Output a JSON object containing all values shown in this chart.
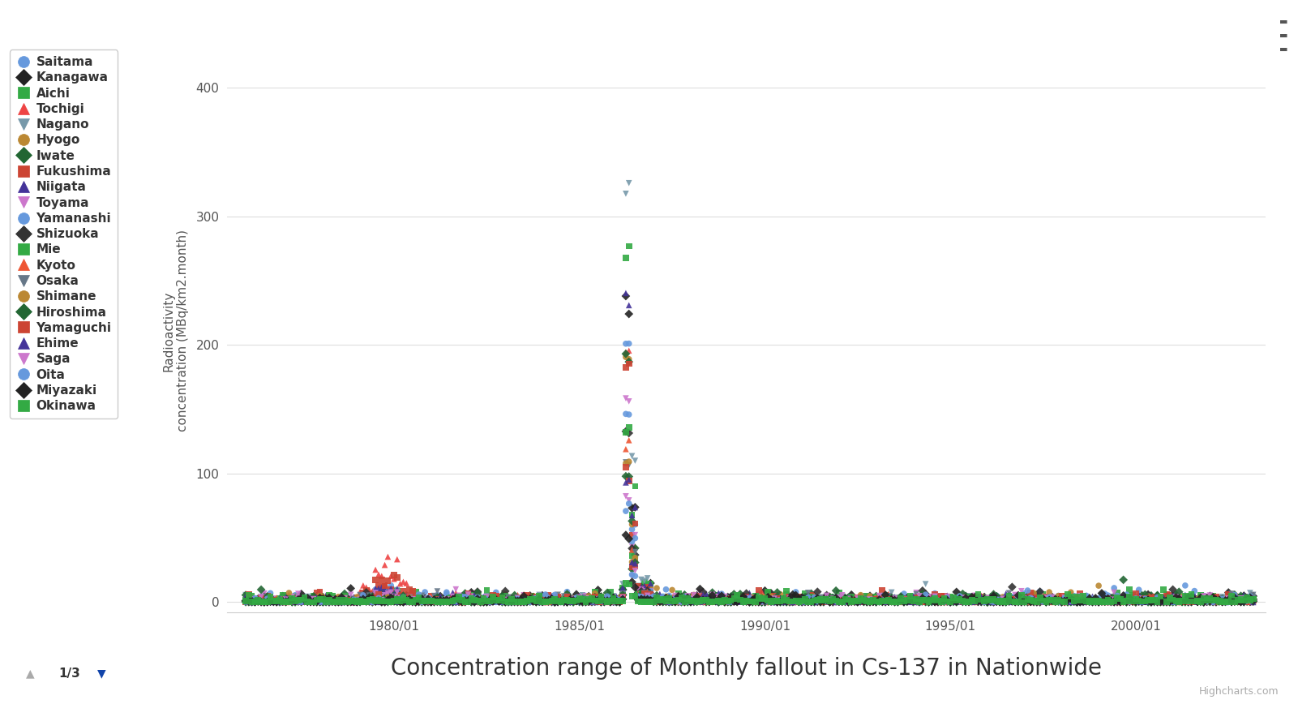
{
  "title": "Concentration range of Monthly fallout in Cs-137 in Nationwide",
  "ylabel": "Radioactivity\nconcentration (MBq/km2.month)",
  "background_color": "#ffffff",
  "plot_bg_color": "#ffffff",
  "grid_color": "#dddddd",
  "xlim_start": 1975.5,
  "xlim_end": 2003.5,
  "ylim": [
    -8,
    430
  ],
  "yticks": [
    0,
    100,
    200,
    300,
    400
  ],
  "series": [
    {
      "name": "Saitama",
      "color": "#6699dd",
      "marker": "o",
      "spike": 197,
      "pre": 12
    },
    {
      "name": "Kanagawa",
      "color": "#222222",
      "marker": "D",
      "spike": 228,
      "pre": 5
    },
    {
      "name": "Aichi",
      "color": "#33aa44",
      "marker": "s",
      "spike": 270,
      "pre": 8
    },
    {
      "name": "Tochigi",
      "color": "#ee4444",
      "marker": "^",
      "spike": 190,
      "pre": 35
    },
    {
      "name": "Nagano",
      "color": "#7799aa",
      "marker": "v",
      "spike": 325,
      "pre": 10
    },
    {
      "name": "Hyogo",
      "color": "#bb8833",
      "marker": "o",
      "spike": 190,
      "pre": 5
    },
    {
      "name": "Iwate",
      "color": "#226633",
      "marker": "D",
      "spike": 185,
      "pre": 7
    },
    {
      "name": "Fukushima",
      "color": "#cc4433",
      "marker": "s",
      "spike": 195,
      "pre": 20
    },
    {
      "name": "Niigata",
      "color": "#443399",
      "marker": "^",
      "spike": 243,
      "pre": 12
    },
    {
      "name": "Toyama",
      "color": "#cc77cc",
      "marker": "v",
      "spike": 160,
      "pre": 8
    },
    {
      "name": "Yamanashi",
      "color": "#6699dd",
      "marker": "o",
      "spike": 148,
      "pre": 5
    },
    {
      "name": "Shizuoka",
      "color": "#333333",
      "marker": "D",
      "spike": 140,
      "pre": 5
    },
    {
      "name": "Mie",
      "color": "#33aa44",
      "marker": "s",
      "spike": 130,
      "pre": 4
    },
    {
      "name": "Kyoto",
      "color": "#ee5533",
      "marker": "^",
      "spike": 125,
      "pre": 5
    },
    {
      "name": "Osaka",
      "color": "#667788",
      "marker": "v",
      "spike": 115,
      "pre": 4
    },
    {
      "name": "Shimane",
      "color": "#bb8833",
      "marker": "o",
      "spike": 110,
      "pre": 4
    },
    {
      "name": "Hiroshima",
      "color": "#226633",
      "marker": "D",
      "spike": 105,
      "pre": 4
    },
    {
      "name": "Yamaguchi",
      "color": "#cc4433",
      "marker": "s",
      "spike": 100,
      "pre": 3
    },
    {
      "name": "Ehime",
      "color": "#443399",
      "marker": "^",
      "spike": 95,
      "pre": 3
    },
    {
      "name": "Saga",
      "color": "#cc77cc",
      "marker": "v",
      "spike": 85,
      "pre": 3
    },
    {
      "name": "Oita",
      "color": "#6699dd",
      "marker": "o",
      "spike": 75,
      "pre": 3
    },
    {
      "name": "Miyazaki",
      "color": "#222222",
      "marker": "D",
      "spike": 50,
      "pre": 2
    },
    {
      "name": "Okinawa",
      "color": "#33aa44",
      "marker": "s",
      "spike": 15,
      "pre": 2
    }
  ],
  "spike_year": 1986.33,
  "pre_peak_year": 1979.75,
  "x_tick_labels": [
    "1980/01",
    "1985/01",
    "1990/01",
    "1995/01",
    "2000/01"
  ],
  "x_tick_positions": [
    1980.0,
    1985.0,
    1990.0,
    1995.0,
    2000.0
  ],
  "title_fontsize": 20,
  "label_fontsize": 11,
  "legend_fontsize": 11,
  "axis_label_color": "#555555",
  "tick_color": "#555555",
  "tick_fontsize": 11
}
